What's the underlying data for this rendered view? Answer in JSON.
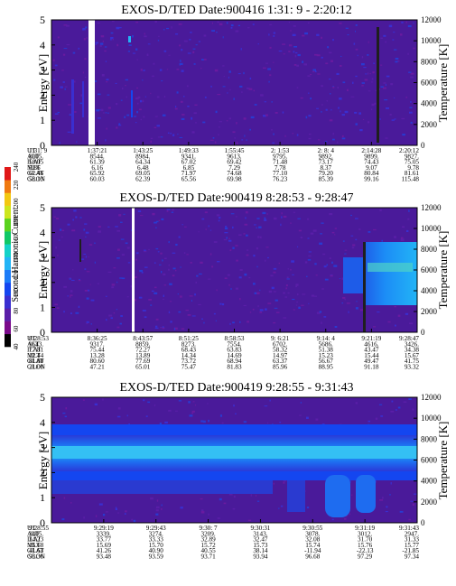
{
  "chart_data": [
    {
      "type": "heatmap",
      "title": "EXOS-D/TED   Date:900416  1:31: 9 - 2:20:12",
      "ylabel": "Energy [eV]",
      "ylabel_right": "Temperature [K]",
      "ylim": [
        0,
        5
      ],
      "yticks": [
        "0",
        "1",
        "2",
        "3",
        "4",
        "5"
      ],
      "ylim_right": [
        0,
        12000
      ],
      "yticks_right": [
        "0",
        "2000",
        "4000",
        "6000",
        "8000",
        "10000",
        "12000"
      ],
      "row_labels": [
        "UT",
        "ALT",
        "ILAT",
        "MLT",
        "GLAT",
        "GLON"
      ],
      "columns": [
        [
          "1:31: 9",
          "8005.",
          "58.05",
          "5.86",
          "62.46",
          "58.13"
        ],
        [
          "1:37:21",
          "8544.",
          "61.39",
          "6.16",
          "65.92",
          "60.03"
        ],
        [
          "1:43:25",
          "8984.",
          "64.34",
          "6.48",
          "69.05",
          "62.39"
        ],
        [
          "1:49:33",
          "9341.",
          "67.02",
          "6.85",
          "71.97",
          "65.56"
        ],
        [
          "1:55:45",
          "9613.",
          "69.42",
          "7.29",
          "74.68",
          "69.98"
        ],
        [
          "2: 1:53",
          "9795.",
          "71.48",
          "7.78",
          "77.10",
          "76.23"
        ],
        [
          "2: 8: 4",
          "9892.",
          "73.17",
          "8.37",
          "79.20",
          "85.39"
        ],
        [
          "2:14:28",
          "9899.",
          "74.43",
          "9.07",
          "80.84",
          "99.16"
        ],
        [
          "2:20:12",
          "9827.",
          "75.05",
          "9.78",
          "81.61",
          "115.48"
        ]
      ]
    },
    {
      "type": "heatmap",
      "title": "EXOS-D/TED   Date:900419  8:28:53 - 9:28:47",
      "ylabel": "Energy [eV]",
      "ylabel_right": "Temperature [K]",
      "ylim": [
        0,
        5
      ],
      "yticks": [
        "0",
        "1",
        "2",
        "3",
        "4",
        "5"
      ],
      "ylim_right": [
        0,
        12000
      ],
      "yticks_right": [
        "0",
        "2000",
        "4000",
        "6000",
        "8000",
        "10000",
        "12000"
      ],
      "row_labels": [
        "UT",
        "ALT",
        "ILAT",
        "MLT",
        "GLAT",
        "GLON"
      ],
      "columns": [
        [
          "8:28:53",
          "9643.",
          "77.81",
          "12.44",
          "81.80",
          "21.00"
        ],
        [
          "8:36:25",
          "9317.",
          "75.44",
          "13.28",
          "80.60",
          "47.21"
        ],
        [
          "8:43:57",
          "8859.",
          "72.27",
          "13.89",
          "77.69",
          "65.01"
        ],
        [
          "8:51:25",
          "8273.",
          "68.43",
          "14.34",
          "73.72",
          "75.47"
        ],
        [
          "8:58:53",
          "7554.",
          "63.83",
          "14.69",
          "68.94",
          "81.83"
        ],
        [
          "9: 6:21",
          "6702.",
          "58.32",
          "14.97",
          "63.37",
          "85.96"
        ],
        [
          "9:14: 4",
          "5686.",
          "51.38",
          "15.23",
          "56.67",
          "88.95"
        ],
        [
          "9:21:19",
          "4616.",
          "43.47",
          "15.44",
          "49.47",
          "91.18"
        ],
        [
          "9:28:47",
          "3426.",
          "34.38",
          "15.67",
          "41.75",
          "93.32"
        ]
      ]
    },
    {
      "type": "heatmap",
      "title": "EXOS-D/TED   Date:900419  9:28:55 - 9:31:43",
      "ylabel": "Energy [eV]",
      "ylabel_right": "Temperature [K]",
      "ylim": [
        0,
        5
      ],
      "yticks": [
        "0",
        "1",
        "2",
        "3",
        "4",
        "5"
      ],
      "ylim_right": [
        0,
        12000
      ],
      "yticks_right": [
        "0",
        "2000",
        "4000",
        "6000",
        "8000",
        "10000",
        "12000"
      ],
      "row_labels": [
        "UT",
        "ALT",
        "ILAT",
        "MLT",
        "GLAT",
        "GLON"
      ],
      "columns": [
        [
          "9:28:55",
          "3405.",
          "34.23",
          "15.68",
          "41.63",
          "93.36"
        ],
        [
          "9:29:19",
          "3339.",
          "33.77",
          "15.69",
          "41.26",
          "93.48"
        ],
        [
          "9:29:43",
          "3274.",
          "33.33",
          "15.70",
          "40.90",
          "93.59"
        ],
        [
          "9:30: 7",
          "3209.",
          "32.89",
          "15.72",
          "40.55",
          "93.71"
        ],
        [
          "9:30:31",
          "3143.",
          "32.47",
          "15.73",
          "38.14",
          "93.94"
        ],
        [
          "9:30:55",
          "3078.",
          "32.08",
          "15.74",
          "-11.94",
          "96.68"
        ],
        [
          "9:31:19",
          "3012.",
          "31.70",
          "15.76",
          "-22.13",
          "97.29"
        ],
        [
          "9:31:43",
          "2947.",
          "31.33",
          "15.77",
          "-21.85",
          "97.34"
        ]
      ]
    }
  ],
  "colorbar": {
    "label": "Second Harmonic Current",
    "ticks": [
      "40",
      "60",
      "80",
      "100",
      "120",
      "140",
      "160",
      "180",
      "200",
      "220",
      "240"
    ],
    "colors": [
      "#000000",
      "#7a0a8a",
      "#5a1ea8",
      "#3a2ed0",
      "#1446f0",
      "#1c7cf8",
      "#22b4f6",
      "#14d2c8",
      "#10c866",
      "#5ad21e",
      "#cce61e",
      "#f2c812",
      "#f07a10",
      "#e01818"
    ]
  }
}
